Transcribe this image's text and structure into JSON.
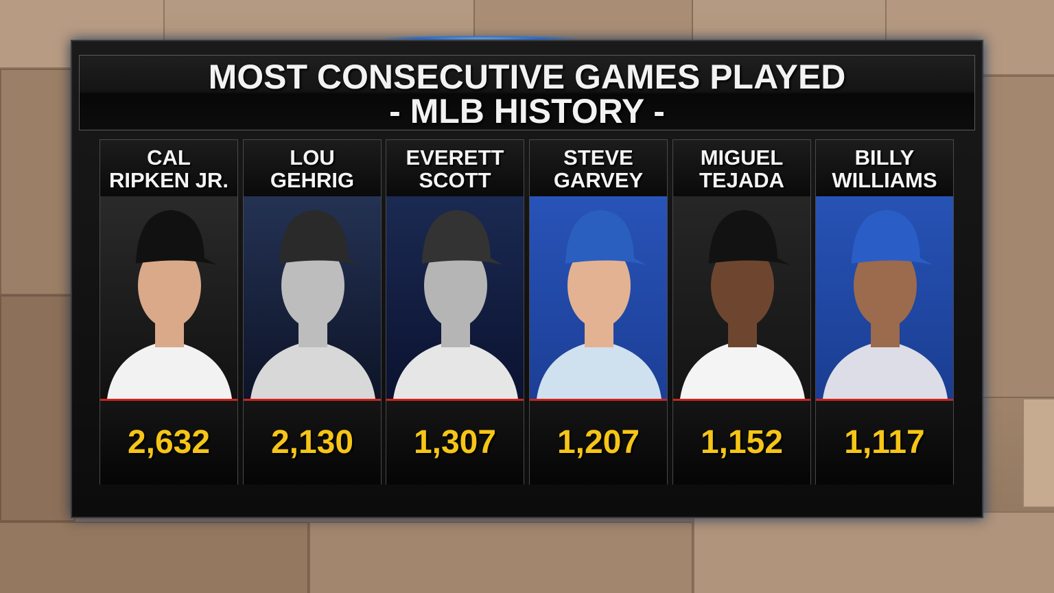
{
  "title": {
    "line1": "MOST CONSECUTIVE GAMES PLAYED",
    "line2": "- MLB HISTORY -"
  },
  "players": [
    {
      "name": [
        "CAL",
        "RIPKEN JR."
      ],
      "games": "2,632"
    },
    {
      "name": [
        "LOU",
        "GEHRIG"
      ],
      "games": "2,130"
    },
    {
      "name": [
        "EVERETT",
        "SCOTT"
      ],
      "games": "1,307"
    },
    {
      "name": [
        "STEVE",
        "GARVEY"
      ],
      "games": "1,207"
    },
    {
      "name": [
        "MIGUEL",
        "TEJADA"
      ],
      "games": "1,152"
    },
    {
      "name": [
        "BILLY",
        "WILLIAMS"
      ],
      "games": "1,117"
    }
  ]
}
